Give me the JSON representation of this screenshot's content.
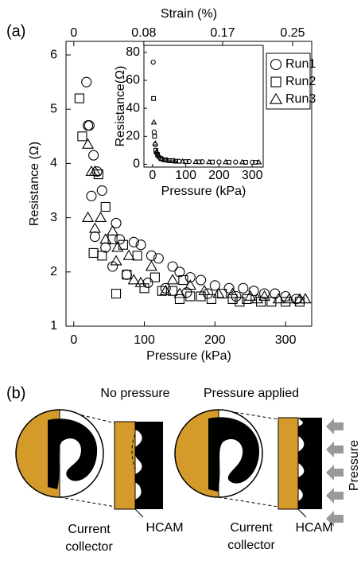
{
  "chart_data": [
    {
      "type": "scatter",
      "xlabel": "Pressure (kPa)",
      "ylabel": "Resistance (Ω)",
      "x2label": "Strain (%)",
      "xlim": [
        -11,
        337
      ],
      "xticks": [
        0,
        100,
        200,
        300
      ],
      "x2lim": [
        -0.0089,
        0.2718
      ],
      "x2ticks": [
        0,
        0.08,
        0.17,
        0.25
      ],
      "ylim": [
        1,
        6.25
      ],
      "yticks": [
        1,
        2,
        3,
        4,
        5,
        6
      ],
      "legend": "upper right",
      "series": [
        {
          "name": "Run1",
          "marker": "circle",
          "color": "#000000",
          "x": [
            18,
            20,
            22,
            25,
            28,
            33,
            40,
            30,
            45,
            55,
            60,
            65,
            75,
            85,
            95,
            110,
            120,
            140,
            150,
            165,
            180,
            200,
            220,
            240,
            255,
            270,
            285,
            300,
            315,
            105,
            130,
            160,
            190,
            230
          ],
          "values": [
            5.5,
            4.7,
            4.7,
            3.4,
            4.15,
            3.85,
            3.5,
            2.65,
            2.45,
            2.1,
            2.9,
            2.6,
            1.95,
            2.55,
            2.5,
            2.3,
            2.25,
            2.1,
            2.0,
            1.9,
            1.85,
            1.75,
            1.7,
            1.7,
            1.65,
            1.6,
            1.6,
            1.55,
            1.5,
            1.8,
            1.7,
            1.62,
            1.6,
            1.55
          ]
        },
        {
          "name": "Run2",
          "marker": "square",
          "color": "#000000",
          "x": [
            8,
            12,
            35,
            45,
            55,
            28,
            40,
            70,
            90,
            100,
            115,
            125,
            140,
            155,
            165,
            180,
            195,
            210,
            225,
            245,
            265,
            280,
            300,
            320,
            60,
            75,
            150,
            235
          ],
          "values": [
            5.2,
            4.5,
            3.8,
            3.2,
            2.6,
            2.35,
            2.3,
            2.5,
            2.3,
            1.7,
            1.9,
            1.65,
            1.65,
            1.85,
            1.55,
            1.55,
            1.5,
            1.6,
            1.5,
            1.5,
            1.45,
            1.45,
            1.45,
            1.45,
            1.6,
            1.95,
            1.5,
            1.45
          ]
        },
        {
          "name": "Run3",
          "marker": "triangle",
          "color": "#000000",
          "x": [
            20,
            25,
            30,
            38,
            30,
            45,
            55,
            62,
            78,
            85,
            95,
            110,
            130,
            150,
            165,
            185,
            205,
            225,
            250,
            270,
            290,
            305,
            320,
            328,
            20,
            60,
            140,
            260
          ],
          "values": [
            4.35,
            3.85,
            3.85,
            3.0,
            2.8,
            2.6,
            2.75,
            2.45,
            2.3,
            1.85,
            1.8,
            2.1,
            1.65,
            1.6,
            1.75,
            1.65,
            1.6,
            1.6,
            1.55,
            1.55,
            1.5,
            1.5,
            1.5,
            1.5,
            3.0,
            2.2,
            1.85,
            1.5
          ]
        }
      ]
    },
    {
      "type": "scatter",
      "xlabel": "Pressure (kPa)",
      "ylabel": "Resistance(Ω)",
      "xlim": [
        -26,
        333
      ],
      "xticks": [
        0,
        100,
        200,
        300
      ],
      "ylim": [
        -2,
        85
      ],
      "yticks": [
        0,
        20,
        40,
        60,
        80
      ],
      "series": [
        {
          "name": "Run1",
          "marker": "circle",
          "color": "#000000",
          "x": [
            2,
            5,
            8,
            12,
            16,
            20,
            30,
            40,
            60,
            80,
            110,
            150,
            200,
            250,
            300
          ],
          "values": [
            73,
            23,
            14,
            8,
            6,
            5,
            3.5,
            3,
            2.5,
            2.2,
            2,
            1.8,
            1.7,
            1.6,
            1.5
          ]
        },
        {
          "name": "Run2",
          "marker": "square",
          "color": "#000000",
          "x": [
            3,
            6,
            10,
            15,
            25,
            35,
            50,
            70,
            100,
            140,
            180,
            230,
            280,
            310
          ],
          "values": [
            47,
            20,
            10,
            7,
            4,
            3.2,
            2.6,
            2.2,
            1.9,
            1.7,
            1.6,
            1.5,
            1.45,
            1.45
          ]
        },
        {
          "name": "Run3",
          "marker": "triangle",
          "color": "#000000",
          "x": [
            4,
            8,
            12,
            18,
            28,
            45,
            65,
            90,
            130,
            170,
            220,
            270,
            320
          ],
          "values": [
            30,
            15,
            9,
            6,
            4,
            3,
            2.5,
            2.1,
            1.8,
            1.65,
            1.6,
            1.55,
            1.5
          ]
        }
      ]
    }
  ],
  "figure": {
    "panel_a": "(a)",
    "panel_b": "(b)",
    "no_pressure": "No pressure",
    "pressure_applied": "Pressure applied",
    "current_collector_left": [
      "Current",
      "collector"
    ],
    "hcam_left": "HCAM",
    "current_collector_right": [
      "Current",
      "collector"
    ],
    "hcam_right": "HCAM",
    "pressure": "Pressure"
  }
}
